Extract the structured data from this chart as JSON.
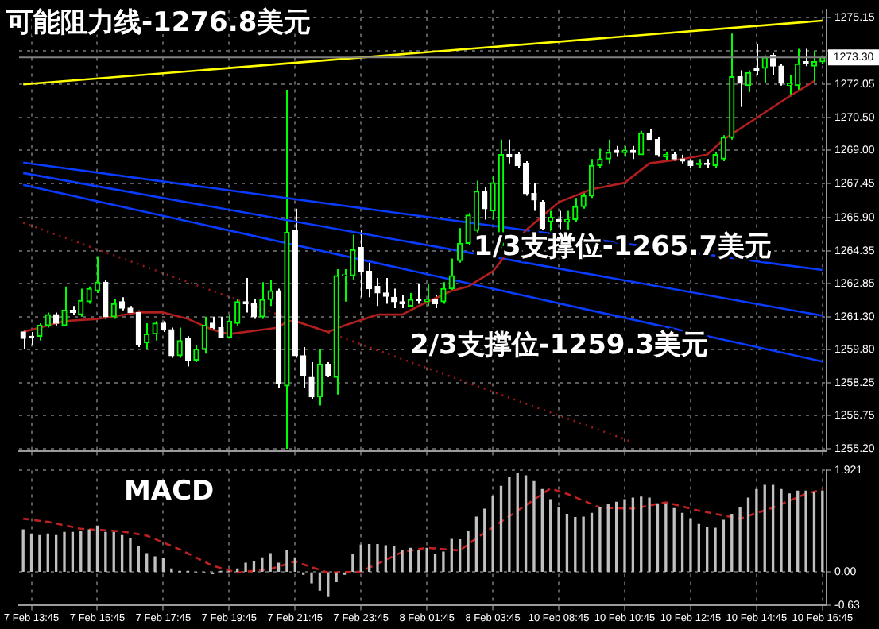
{
  "chart_data": [
    {
      "type": "candlestick",
      "ohlc": [
        [
          1260.6,
          1260.7,
          1259.8,
          1260.3
        ],
        [
          1260.4,
          1260.6,
          1260.0,
          1260.35
        ],
        [
          1260.4,
          1261.0,
          1260.2,
          1260.9
        ],
        [
          1260.9,
          1261.5,
          1260.8,
          1261.4
        ],
        [
          1261.4,
          1261.5,
          1260.9,
          1261.0
        ],
        [
          1260.9,
          1262.7,
          1260.9,
          1261.6
        ],
        [
          1261.6,
          1261.8,
          1261.4,
          1261.5
        ],
        [
          1261.4,
          1262.6,
          1261.3,
          1262.05
        ],
        [
          1262.0,
          1262.7,
          1261.9,
          1262.6
        ],
        [
          1262.5,
          1264.1,
          1262.4,
          1262.9
        ],
        [
          1262.9,
          1263.0,
          1261.2,
          1261.3
        ],
        [
          1261.3,
          1262.1,
          1261.2,
          1261.9
        ],
        [
          1262.0,
          1262.2,
          1261.6,
          1261.7
        ],
        [
          1261.7,
          1261.8,
          1261.4,
          1261.5
        ],
        [
          1261.5,
          1261.6,
          1259.9,
          1260.0
        ],
        [
          1260.1,
          1261.0,
          1259.8,
          1260.5
        ],
        [
          1260.5,
          1261.1,
          1260.2,
          1261.0
        ],
        [
          1261.0,
          1261.1,
          1260.6,
          1260.7
        ],
        [
          1260.7,
          1260.8,
          1259.4,
          1259.5
        ],
        [
          1259.5,
          1260.8,
          1259.4,
          1260.2
        ],
        [
          1260.3,
          1260.4,
          1259.0,
          1259.3
        ],
        [
          1259.3,
          1260.0,
          1259.2,
          1259.8
        ],
        [
          1259.8,
          1261.3,
          1259.6,
          1260.9
        ],
        [
          1261.0,
          1261.3,
          1260.7,
          1260.8
        ],
        [
          1260.8,
          1261.3,
          1260.3,
          1260.35
        ],
        [
          1260.35,
          1261.4,
          1260.3,
          1261.1
        ],
        [
          1261.0,
          1262.1,
          1260.9,
          1262.0
        ],
        [
          1262.0,
          1263.1,
          1261.5,
          1261.9
        ],
        [
          1261.9,
          1262.1,
          1261.2,
          1261.3
        ],
        [
          1261.3,
          1262.9,
          1261.2,
          1262.1
        ],
        [
          1262.1,
          1263.0,
          1261.8,
          1262.5
        ],
        [
          1262.5,
          1262.6,
          1258.0,
          1258.2
        ],
        [
          1258.1,
          1271.8,
          1255.2,
          1265.2
        ],
        [
          1265.3,
          1266.3,
          1259.4,
          1259.5
        ],
        [
          1259.5,
          1259.9,
          1258.0,
          1258.6
        ],
        [
          1258.5,
          1259.2,
          1257.5,
          1257.6
        ],
        [
          1257.6,
          1259.8,
          1257.2,
          1259.1
        ],
        [
          1259.1,
          1259.2,
          1258.5,
          1258.6
        ],
        [
          1258.5,
          1263.5,
          1257.7,
          1263.2
        ],
        [
          1263.2,
          1263.5,
          1262.0,
          1263.25
        ],
        [
          1263.2,
          1265.1,
          1263.0,
          1264.4
        ],
        [
          1264.5,
          1265.3,
          1262.2,
          1263.4
        ],
        [
          1263.4,
          1263.8,
          1262.2,
          1262.6
        ],
        [
          1262.7,
          1263.1,
          1261.8,
          1262.4
        ],
        [
          1262.4,
          1263.1,
          1261.9,
          1262.25
        ],
        [
          1262.2,
          1262.6,
          1261.7,
          1262.0
        ],
        [
          1262.0,
          1262.3,
          1261.7,
          1261.9
        ],
        [
          1261.8,
          1262.4,
          1261.8,
          1262.1
        ],
        [
          1262.1,
          1262.8,
          1261.9,
          1262.05
        ],
        [
          1262.0,
          1262.8,
          1261.8,
          1262.1
        ],
        [
          1262.1,
          1262.3,
          1261.7,
          1261.9
        ],
        [
          1262.0,
          1262.9,
          1261.9,
          1262.6
        ],
        [
          1262.6,
          1264.0,
          1262.5,
          1263.2
        ],
        [
          1263.9,
          1265.4,
          1263.8,
          1264.7
        ],
        [
          1264.7,
          1266.1,
          1264.6,
          1266.0
        ],
        [
          1265.3,
          1267.6,
          1265.2,
          1267.1
        ],
        [
          1267.1,
          1267.3,
          1265.8,
          1266.3
        ],
        [
          1266.2,
          1267.8,
          1265.8,
          1267.5
        ],
        [
          1264.6,
          1269.5,
          1264.4,
          1268.8
        ],
        [
          1268.8,
          1269.5,
          1268.4,
          1268.7
        ],
        [
          1268.8,
          1268.9,
          1268.2,
          1268.3
        ],
        [
          1268.4,
          1268.5,
          1266.9,
          1267.0
        ],
        [
          1267.0,
          1267.5,
          1266.2,
          1266.7
        ],
        [
          1266.6,
          1266.7,
          1265.3,
          1265.4
        ],
        [
          1265.7,
          1266.2,
          1265.1,
          1265.9
        ],
        [
          1265.8,
          1266.2,
          1265.1,
          1265.7
        ],
        [
          1265.7,
          1266.2,
          1265.1,
          1265.8
        ],
        [
          1265.8,
          1266.8,
          1265.7,
          1266.4
        ],
        [
          1266.4,
          1267.1,
          1266.3,
          1266.9
        ],
        [
          1266.9,
          1268.6,
          1266.8,
          1268.3
        ],
        [
          1268.3,
          1269.1,
          1268.2,
          1268.6
        ],
        [
          1268.6,
          1269.5,
          1268.4,
          1268.9
        ],
        [
          1269.0,
          1269.2,
          1268.7,
          1268.9
        ],
        [
          1268.9,
          1269.2,
          1268.7,
          1269.0
        ],
        [
          1269.0,
          1269.2,
          1268.6,
          1268.9
        ],
        [
          1268.8,
          1269.9,
          1268.8,
          1269.8
        ],
        [
          1269.8,
          1270.0,
          1269.5,
          1269.5
        ],
        [
          1269.5,
          1269.6,
          1268.7,
          1268.8
        ],
        [
          1268.7,
          1268.9,
          1268.5,
          1268.8
        ],
        [
          1268.8,
          1268.9,
          1268.5,
          1268.6
        ],
        [
          1268.6,
          1268.8,
          1268.4,
          1268.5
        ],
        [
          1268.5,
          1268.6,
          1268.2,
          1268.3
        ],
        [
          1268.35,
          1268.6,
          1268.2,
          1268.4
        ],
        [
          1268.4,
          1268.6,
          1268.2,
          1268.35
        ],
        [
          1268.3,
          1268.9,
          1268.2,
          1268.8
        ],
        [
          1268.6,
          1269.7,
          1268.5,
          1269.6
        ],
        [
          1269.6,
          1274.4,
          1269.5,
          1272.4
        ],
        [
          1272.4,
          1272.7,
          1271.0,
          1272.1
        ],
        [
          1272.0,
          1272.7,
          1271.7,
          1272.6
        ],
        [
          1272.8,
          1273.9,
          1272.5,
          1272.7
        ],
        [
          1272.8,
          1273.4,
          1272.1,
          1273.3
        ],
        [
          1273.4,
          1273.5,
          1272.5,
          1272.9
        ],
        [
          1272.9,
          1273.0,
          1272.0,
          1272.1
        ],
        [
          1272.0,
          1272.5,
          1271.5,
          1272.1
        ],
        [
          1272.0,
          1273.7,
          1271.8,
          1273.0
        ],
        [
          1273.1,
          1273.7,
          1272.9,
          1273.0
        ],
        [
          1272.9,
          1273.6,
          1272.1,
          1273.1
        ],
        [
          1273.1,
          1273.4,
          1273.0,
          1273.3
        ]
      ],
      "colors": [
        "#ffffff",
        "#ffffff",
        "#00ff00",
        "#00ff00",
        "#ffffff",
        "#00ff00",
        "#ffffff",
        "#00ff00",
        "#00ff00",
        "#00ff00",
        "#ffffff",
        "#00ff00",
        "#ffffff",
        "#ffffff",
        "#ffffff",
        "#00ff00",
        "#00ff00",
        "#ffffff",
        "#ffffff",
        "#00ff00",
        "#ffffff",
        "#00ff00",
        "#00ff00",
        "#ffffff",
        "#ffffff",
        "#00ff00",
        "#00ff00",
        "#ffffff",
        "#ffffff",
        "#00ff00",
        "#00ff00",
        "#ffffff",
        "#00ff00",
        "#ffffff",
        "#ffffff",
        "#ffffff",
        "#00ff00",
        "#ffffff",
        "#00ff00",
        "#00ff00",
        "#00ff00",
        "#ffffff",
        "#ffffff",
        "#ffffff",
        "#ffffff",
        "#ffffff",
        "#ffffff",
        "#00ff00",
        "#ffffff",
        "#00ff00",
        "#ffffff",
        "#00ff00",
        "#00ff00",
        "#00ff00",
        "#00ff00",
        "#00ff00",
        "#ffffff",
        "#00ff00",
        "#00ff00",
        "#ffffff",
        "#ffffff",
        "#ffffff",
        "#ffffff",
        "#ffffff",
        "#00ff00",
        "#ffffff",
        "#00ff00",
        "#00ff00",
        "#00ff00",
        "#00ff00",
        "#00ff00",
        "#00ff00",
        "#ffffff",
        "#00ff00",
        "#ffffff",
        "#00ff00",
        "#ffffff",
        "#ffffff",
        "#00ff00",
        "#ffffff",
        "#ffffff",
        "#ffffff",
        "#00ff00",
        "#ffffff",
        "#00ff00",
        "#00ff00",
        "#00ff00",
        "#ffffff",
        "#00ff00",
        "#ffffff",
        "#00ff00",
        "#ffffff",
        "#ffffff",
        "#00ff00",
        "#00ff00",
        "#ffffff",
        "#00ff00",
        "#00ff00"
      ],
      "series": [
        {
          "type": "line",
          "color": "#b01e1e",
          "values": [
            1260.6,
            null,
            null,
            null,
            null,
            1261.1,
            null,
            null,
            null,
            1261.2,
            null,
            null,
            null,
            null,
            1261.5,
            null,
            null,
            1261.5,
            null,
            null,
            1261.2,
            null,
            null,
            1260.7,
            null,
            1260.5,
            null,
            null,
            null,
            1260.7,
            null,
            1260.8,
            1261.1,
            1261.1,
            null,
            null,
            null,
            1260.6,
            null,
            1260.9,
            null,
            null,
            null,
            1261.4,
            null,
            null,
            1261.4,
            null,
            1261.8,
            null,
            null,
            null,
            1262.5,
            null,
            1262.7,
            null,
            null,
            1263.4,
            null,
            null,
            null,
            1265.3,
            null,
            null,
            null,
            1266.6,
            null,
            null,
            null,
            1267.2,
            null,
            null,
            null,
            1267.5,
            null,
            null,
            1268.4,
            null,
            null,
            null,
            1268.6,
            null,
            null,
            1268.8,
            null,
            1269.5,
            null,
            null,
            null,
            1270.5,
            null,
            null,
            null,
            1271.5,
            null,
            null,
            1272.2,
            null
          ]
        },
        {
          "type": "line",
          "color": "#a01818",
          "line_style": "dotted",
          "values": [
            1265.65,
            null,
            null,
            null,
            null,
            null,
            null,
            null,
            null,
            null,
            null,
            null,
            null,
            null,
            null,
            null,
            null,
            null,
            null,
            null,
            null,
            null,
            null,
            null,
            null,
            null,
            null,
            null,
            null,
            null,
            null,
            null,
            null,
            null,
            null,
            null,
            null,
            null,
            null,
            null,
            null,
            null,
            null,
            null,
            null,
            null,
            null,
            null,
            null,
            null,
            null,
            null,
            null,
            null,
            null,
            null,
            null,
            null,
            null,
            null,
            null,
            null,
            null,
            null,
            null,
            null,
            null,
            null,
            null,
            null,
            null,
            null,
            null,
            null,
            1255.5,
            null,
            null,
            null,
            null,
            null,
            null,
            null,
            null,
            null,
            null,
            null,
            null,
            null,
            null,
            null,
            null,
            null,
            null,
            null,
            null,
            null,
            null,
            null
          ]
        },
        {
          "type": "line",
          "color": "#ffff00",
          "values": [
            1272.05,
            null,
            null,
            null,
            null,
            null,
            null,
            null,
            null,
            null,
            null,
            null,
            null,
            null,
            null,
            null,
            null,
            null,
            null,
            null,
            null,
            null,
            null,
            null,
            null,
            null,
            null,
            null,
            null,
            null,
            null,
            null,
            null,
            null,
            null,
            null,
            null,
            null,
            null,
            null,
            null,
            null,
            null,
            null,
            null,
            null,
            null,
            null,
            null,
            null,
            null,
            null,
            null,
            null,
            null,
            null,
            null,
            null,
            null,
            null,
            null,
            null,
            null,
            null,
            null,
            null,
            null,
            null,
            null,
            null,
            null,
            null,
            null,
            null,
            null,
            null,
            null,
            null,
            null,
            null,
            null,
            null,
            null,
            null,
            null,
            null,
            null,
            null,
            null,
            null,
            null,
            null,
            null,
            null,
            null,
            null,
            null,
            1275.0
          ]
        },
        {
          "type": "line",
          "color": "#0a3cff",
          "values": [
            1268.43,
            null,
            null,
            null,
            null,
            null,
            null,
            null,
            null,
            null,
            null,
            null,
            null,
            null,
            null,
            null,
            null,
            null,
            null,
            null,
            null,
            null,
            null,
            null,
            null,
            null,
            null,
            null,
            null,
            null,
            null,
            null,
            null,
            null,
            null,
            null,
            null,
            null,
            null,
            null,
            null,
            null,
            null,
            null,
            null,
            null,
            null,
            null,
            null,
            null,
            null,
            null,
            null,
            null,
            null,
            null,
            null,
            null,
            null,
            null,
            null,
            null,
            null,
            null,
            null,
            null,
            null,
            null,
            null,
            null,
            null,
            null,
            null,
            null,
            null,
            null,
            null,
            null,
            null,
            null,
            null,
            null,
            null,
            null,
            null,
            null,
            null,
            null,
            null,
            null,
            null,
            null,
            null,
            null,
            null,
            null,
            null,
            1263.46
          ]
        },
        {
          "type": "line",
          "color": "#0a3cff",
          "values": [
            1267.95,
            null,
            null,
            null,
            null,
            null,
            null,
            null,
            null,
            null,
            null,
            null,
            null,
            null,
            null,
            null,
            null,
            null,
            null,
            null,
            null,
            null,
            null,
            null,
            null,
            null,
            null,
            null,
            null,
            null,
            null,
            null,
            null,
            null,
            null,
            null,
            null,
            null,
            null,
            null,
            null,
            null,
            null,
            null,
            null,
            null,
            null,
            null,
            null,
            null,
            null,
            null,
            null,
            null,
            null,
            null,
            null,
            null,
            null,
            null,
            null,
            null,
            null,
            null,
            null,
            null,
            null,
            null,
            null,
            null,
            null,
            null,
            null,
            null,
            null,
            null,
            null,
            null,
            null,
            null,
            null,
            null,
            null,
            null,
            null,
            null,
            null,
            null,
            null,
            null,
            null,
            null,
            null,
            null,
            null,
            null,
            null,
            1261.35
          ]
        },
        {
          "type": "line",
          "color": "#0a3cff",
          "values": [
            1267.4,
            null,
            null,
            null,
            null,
            null,
            null,
            null,
            null,
            null,
            null,
            null,
            null,
            null,
            null,
            null,
            null,
            null,
            null,
            null,
            null,
            null,
            null,
            null,
            null,
            null,
            null,
            null,
            null,
            null,
            null,
            null,
            null,
            null,
            null,
            null,
            null,
            null,
            null,
            null,
            null,
            null,
            null,
            null,
            null,
            null,
            null,
            null,
            null,
            null,
            null,
            null,
            null,
            null,
            null,
            null,
            null,
            null,
            null,
            null,
            null,
            null,
            null,
            null,
            null,
            null,
            null,
            null,
            null,
            null,
            null,
            null,
            null,
            null,
            null,
            null,
            null,
            null,
            null,
            null,
            null,
            null,
            null,
            null,
            null,
            null,
            null,
            null,
            null,
            null,
            null,
            null,
            null,
            null,
            null,
            null,
            null,
            1259.23
          ]
        }
      ],
      "ylim": [
        1255.1,
        1275.5
      ],
      "yticks": [
        {
          "value": 1255.2,
          "label": "1255.20"
        },
        1256.75,
        1258.25,
        {
          "value": 1259.8,
          "label": "1259.80"
        },
        {
          "value": 1261.3,
          "label": "1261.30"
        },
        1262.85,
        1264.35,
        {
          "value": 1265.9,
          "label": "1265.90"
        },
        1267.45,
        {
          "value": 1269,
          "label": "1269.00"
        },
        {
          "value": 1270.5,
          "label": "1270.50"
        },
        1272.05,
        {
          "value": 1273.6,
          "label": null
        },
        1275.15
      ],
      "grid": true,
      "tick_labels": "y",
      "ref_lines": [
        {
          "axis": "y",
          "value": 1273.3,
          "label": "1273.30",
          "color": "#808080"
        }
      ],
      "annotations": [
        "可能阻力线-1276.8美元",
        "1/3支撑位-1265.7美元",
        "2/3支撑位-1259.3美元"
      ]
    },
    {
      "type": "bar",
      "title": "MACD",
      "categories": [
        null,
        "7 Feb 13:45",
        null,
        null,
        null,
        null,
        null,
        null,
        null,
        "7 Feb 15:45",
        null,
        null,
        null,
        null,
        null,
        null,
        null,
        "7 Feb 17:45",
        null,
        null,
        null,
        null,
        null,
        null,
        null,
        "7 Feb 19:45",
        null,
        null,
        null,
        null,
        null,
        null,
        null,
        "7 Feb 21:45",
        null,
        null,
        null,
        null,
        null,
        null,
        null,
        "7 Feb 23:45",
        null,
        null,
        null,
        null,
        null,
        null,
        null,
        "8 Feb 01:45",
        null,
        null,
        null,
        null,
        null,
        null,
        null,
        "8 Feb 03:45",
        null,
        null,
        null,
        null,
        null,
        null,
        null,
        "10 Feb 08:45",
        null,
        null,
        null,
        null,
        null,
        null,
        null,
        "10 Feb 10:45",
        null,
        null,
        null,
        null,
        null,
        null,
        null,
        "10 Feb 12:45",
        null,
        null,
        null,
        null,
        null,
        null,
        null,
        "10 Feb 14:45",
        null,
        null,
        null,
        null,
        null,
        null,
        null,
        "10 Feb 16:45"
      ],
      "series": [
        {
          "type": "bar",
          "color": "#c0c0c0",
          "values": [
            0.8,
            0.72,
            0.69,
            0.72,
            0.69,
            0.75,
            0.75,
            0.77,
            0.8,
            0.87,
            0.75,
            0.75,
            0.69,
            0.64,
            0.48,
            0.35,
            0.29,
            0.26,
            0.06,
            0.01,
            0.01,
            -0.01,
            -0.01,
            -0.03,
            0.01,
            0.01,
            0.06,
            0.17,
            0.2,
            0.27,
            0.35,
            0.17,
            0.41,
            0.27,
            -0.04,
            -0.2,
            -0.34,
            -0.46,
            -0.18,
            -0.04,
            0.33,
            0.51,
            0.52,
            0.52,
            0.5,
            0.48,
            0.41,
            0.45,
            0.41,
            0.45,
            0.33,
            0.38,
            0.62,
            0.61,
            0.77,
            1.04,
            1.19,
            1.43,
            1.62,
            1.79,
            1.87,
            1.82,
            1.71,
            1.56,
            1.37,
            1.22,
            1.09,
            1.03,
            1.04,
            1.11,
            1.22,
            1.27,
            1.32,
            1.37,
            1.4,
            1.42,
            1.4,
            1.29,
            1.29,
            1.2,
            1.11,
            1.01,
            0.9,
            0.85,
            0.83,
            0.98,
            1.09,
            1.22,
            1.4,
            1.56,
            1.64,
            1.64,
            1.56,
            1.48,
            1.53,
            1.53,
            1.5,
            1.53
          ]
        },
        {
          "type": "line",
          "color": "#c02020",
          "line_style": "dashed",
          "values": [
            1.01,
            null,
            null,
            0.95,
            null,
            null,
            null,
            0.82,
            null,
            null,
            null,
            null,
            0.77,
            null,
            null,
            0.69,
            null,
            null,
            null,
            0.43,
            null,
            null,
            null,
            0.12,
            null,
            null,
            -0.01,
            null,
            null,
            null,
            0.06,
            null,
            null,
            0.2,
            null,
            null,
            null,
            -0.01,
            null,
            null,
            null,
            0.01,
            null,
            null,
            null,
            null,
            0.38,
            null,
            null,
            0.46,
            null,
            null,
            null,
            0.41,
            null,
            0.64,
            null,
            null,
            null,
            null,
            1.16,
            null,
            null,
            null,
            1.58,
            null,
            1.48,
            null,
            null,
            null,
            1.22,
            null,
            null,
            null,
            1.2,
            null,
            null,
            null,
            1.32,
            null,
            null,
            null,
            1.16,
            null,
            null,
            null,
            null,
            1.01,
            null,
            null,
            null,
            1.22,
            null,
            null,
            null,
            1.48,
            null,
            1.56
          ]
        }
      ],
      "ylim": [
        -0.63,
        1.921
      ],
      "yticks": [
        1.921,
        {
          "value": 0,
          "label": "0.00"
        },
        -0.63
      ],
      "grid": true
    }
  ]
}
